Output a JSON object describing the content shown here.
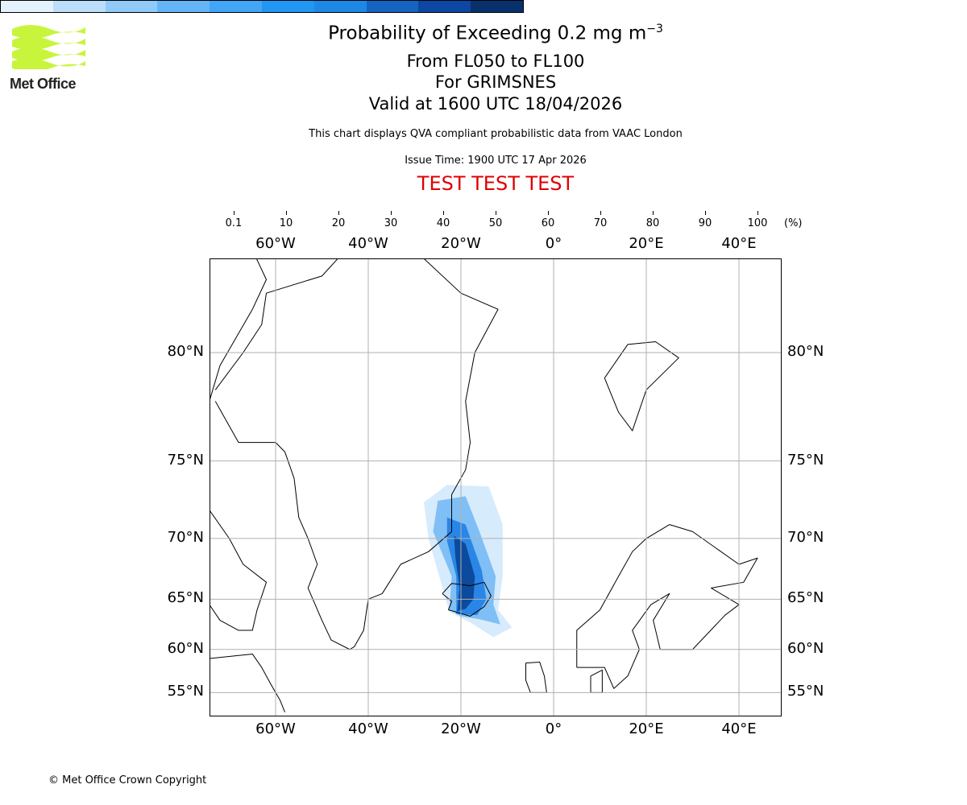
{
  "logo": {
    "text": "Met Office",
    "color": "#c8f53c"
  },
  "header": {
    "title_main": "Probability of Exceeding 0.2 mg m",
    "title_sup": "−3",
    "subtitle_levels": "From FL050 to FL100",
    "subtitle_location": "For GRIMSNES",
    "subtitle_valid": "Valid at 1600 UTC 18/04/2026",
    "note": "This chart displays QVA compliant probabilistic data from VAAC London",
    "issue_time": "Issue Time: 1900 UTC 17 Apr 2026",
    "test_banner": "TEST TEST TEST"
  },
  "footer": {
    "copyright": "© Met Office Crown Copyright"
  },
  "chart_data": {
    "type": "heatmap",
    "projection": "mercator",
    "extent": {
      "lon": [
        -74.3,
        49.2
      ],
      "lat": [
        52.5,
        83.6
      ]
    },
    "lon_ticks": [
      {
        "v": -60,
        "label": "60°W"
      },
      {
        "v": -40,
        "label": "40°W"
      },
      {
        "v": -20,
        "label": "20°W"
      },
      {
        "v": 0,
        "label": "0°"
      },
      {
        "v": 20,
        "label": "20°E"
      },
      {
        "v": 40,
        "label": "40°E"
      }
    ],
    "lat_ticks": [
      {
        "v": 80,
        "label": "80°N"
      },
      {
        "v": 75,
        "label": "75°N"
      },
      {
        "v": 70,
        "label": "70°N"
      },
      {
        "v": 65,
        "label": "65°N"
      },
      {
        "v": 60,
        "label": "60°N"
      },
      {
        "v": 55,
        "label": "55°N"
      }
    ],
    "colorbar": {
      "unit": "(%)",
      "bounds": [
        "0.1",
        "10",
        "20",
        "30",
        "40",
        "50",
        "60",
        "70",
        "80",
        "90",
        "100"
      ],
      "colors": [
        "#e3f2fd",
        "#bbdefb",
        "#90caf9",
        "#64b5f6",
        "#42a5f5",
        "#2196f3",
        "#1e88e5",
        "#1565c0",
        "#0d47a1",
        "#08306b"
      ]
    },
    "plume_levels": [
      {
        "min_pct": 0.1,
        "color": "#d6ebfc",
        "polygon": [
          [
            -28,
            72.5
          ],
          [
            -23,
            73.6
          ],
          [
            -14,
            73.5
          ],
          [
            -11,
            71
          ],
          [
            -11,
            67
          ],
          [
            -12,
            64
          ],
          [
            -9,
            62.3
          ],
          [
            -13,
            61.3
          ],
          [
            -18,
            62.8
          ],
          [
            -22.5,
            63.8
          ],
          [
            -27,
            70
          ],
          [
            -28,
            72.5
          ]
        ]
      },
      {
        "min_pct": 20,
        "color": "#7fbff5",
        "polygon": [
          [
            -25,
            72.6
          ],
          [
            -19,
            72.9
          ],
          [
            -16,
            70.5
          ],
          [
            -12.5,
            67
          ],
          [
            -13,
            64.5
          ],
          [
            -11.5,
            62.6
          ],
          [
            -16,
            63.1
          ],
          [
            -20,
            63.4
          ],
          [
            -22.5,
            64
          ],
          [
            -22,
            67
          ],
          [
            -26,
            70.5
          ],
          [
            -25,
            72.6
          ]
        ]
      },
      {
        "min_pct": 50,
        "color": "#2a86e6",
        "polygon": [
          [
            -23,
            71.5
          ],
          [
            -19,
            71
          ],
          [
            -15.5,
            67.5
          ],
          [
            -14.5,
            65
          ],
          [
            -16.5,
            63.5
          ],
          [
            -21,
            63.6
          ],
          [
            -21,
            67
          ],
          [
            -23,
            69.8
          ],
          [
            -23,
            71.5
          ]
        ]
      },
      {
        "min_pct": 80,
        "color": "#0b4a9c",
        "polygon": [
          [
            -21.5,
            70.2
          ],
          [
            -19,
            69.6
          ],
          [
            -17,
            67
          ],
          [
            -17.3,
            65
          ],
          [
            -19,
            64.1
          ],
          [
            -20.8,
            63.9
          ],
          [
            -20.3,
            66
          ],
          [
            -21.2,
            68.6
          ],
          [
            -21.5,
            70.2
          ]
        ]
      }
    ],
    "coastlines": [
      [
        [
          -73,
          78
        ],
        [
          -68,
          76
        ],
        [
          -60,
          76
        ],
        [
          -58,
          75.5
        ],
        [
          -56,
          74
        ],
        [
          -55,
          71.5
        ],
        [
          -53,
          70
        ],
        [
          -51,
          68
        ],
        [
          -53,
          66
        ],
        [
          -50,
          63
        ],
        [
          -48,
          61
        ],
        [
          -44,
          60
        ],
        [
          -43,
          60.3
        ],
        [
          -41,
          62
        ],
        [
          -40,
          65
        ],
        [
          -37,
          65.5
        ],
        [
          -33,
          68
        ],
        [
          -27,
          69
        ],
        [
          -22,
          70.5
        ],
        [
          -22,
          72
        ],
        [
          -22,
          73
        ],
        [
          -19,
          74.5
        ],
        [
          -18,
          76
        ],
        [
          -19,
          78
        ],
        [
          -17,
          80
        ],
        [
          -12,
          81.5
        ],
        [
          -20,
          82
        ],
        [
          -30,
          83.2
        ],
        [
          -40,
          83.8
        ],
        [
          -50,
          82.5
        ],
        [
          -62,
          82
        ],
        [
          -63,
          81
        ],
        [
          -67,
          80
        ],
        [
          -73,
          78.5
        ]
      ],
      [
        [
          -24,
          65.5
        ],
        [
          -22,
          66.4
        ],
        [
          -18,
          66.2
        ],
        [
          -15,
          66.5
        ],
        [
          -13.5,
          65.3
        ],
        [
          -15,
          64.3
        ],
        [
          -18,
          63.4
        ],
        [
          -21,
          63.8
        ],
        [
          -22.7,
          64
        ],
        [
          -22,
          64.8
        ],
        [
          -24,
          65.5
        ]
      ],
      [
        [
          11,
          79
        ],
        [
          16,
          80.3
        ],
        [
          22,
          80.4
        ],
        [
          27,
          79.8
        ],
        [
          20,
          78.5
        ],
        [
          17,
          76.6
        ],
        [
          14,
          77.5
        ],
        [
          11,
          79
        ]
      ],
      [
        [
          5,
          58
        ],
        [
          5,
          62
        ],
        [
          10,
          64
        ],
        [
          14,
          67
        ],
        [
          17,
          69
        ],
        [
          20,
          70
        ],
        [
          25,
          71
        ],
        [
          30,
          70.5
        ],
        [
          40,
          68
        ],
        [
          44,
          68.5
        ],
        [
          41,
          66.5
        ],
        [
          34,
          66
        ],
        [
          40,
          64.5
        ],
        [
          37,
          63.5
        ],
        [
          30,
          60
        ],
        [
          23,
          60
        ],
        [
          21.5,
          63
        ],
        [
          25,
          65.5
        ],
        [
          21,
          64.5
        ],
        [
          17,
          62
        ],
        [
          18.5,
          60
        ],
        [
          16,
          57
        ],
        [
          13,
          55.5
        ],
        [
          11,
          58
        ],
        [
          8,
          58
        ],
        [
          5,
          58
        ]
      ],
      [
        [
          8,
          57
        ],
        [
          10.5,
          57.7
        ],
        [
          10.5,
          55
        ],
        [
          8,
          55
        ],
        [
          8,
          57
        ]
      ],
      [
        [
          -6,
          58.5
        ],
        [
          -3,
          58.6
        ],
        [
          -2,
          57
        ],
        [
          -1.5,
          55
        ],
        [
          -5,
          55
        ],
        [
          -6,
          56.5
        ],
        [
          -6,
          58.5
        ]
      ],
      [
        [
          -74.3,
          78
        ],
        [
          -72,
          79.5
        ],
        [
          -65,
          81.5
        ],
        [
          -62,
          82.4
        ],
        [
          -65,
          83.2
        ],
        [
          -74.3,
          83.1
        ]
      ],
      [
        [
          -74.3,
          72
        ],
        [
          -70,
          70
        ],
        [
          -67,
          68
        ],
        [
          -62,
          66.5
        ],
        [
          -64,
          64
        ],
        [
          -65,
          62
        ],
        [
          -68,
          62
        ],
        [
          -72,
          63
        ],
        [
          -74.3,
          64.5
        ]
      ],
      [
        [
          -74.3,
          59
        ],
        [
          -65,
          59.5
        ],
        [
          -63,
          58
        ],
        [
          -61,
          56
        ],
        [
          -59,
          54
        ],
        [
          -58,
          52.5
        ]
      ]
    ]
  }
}
